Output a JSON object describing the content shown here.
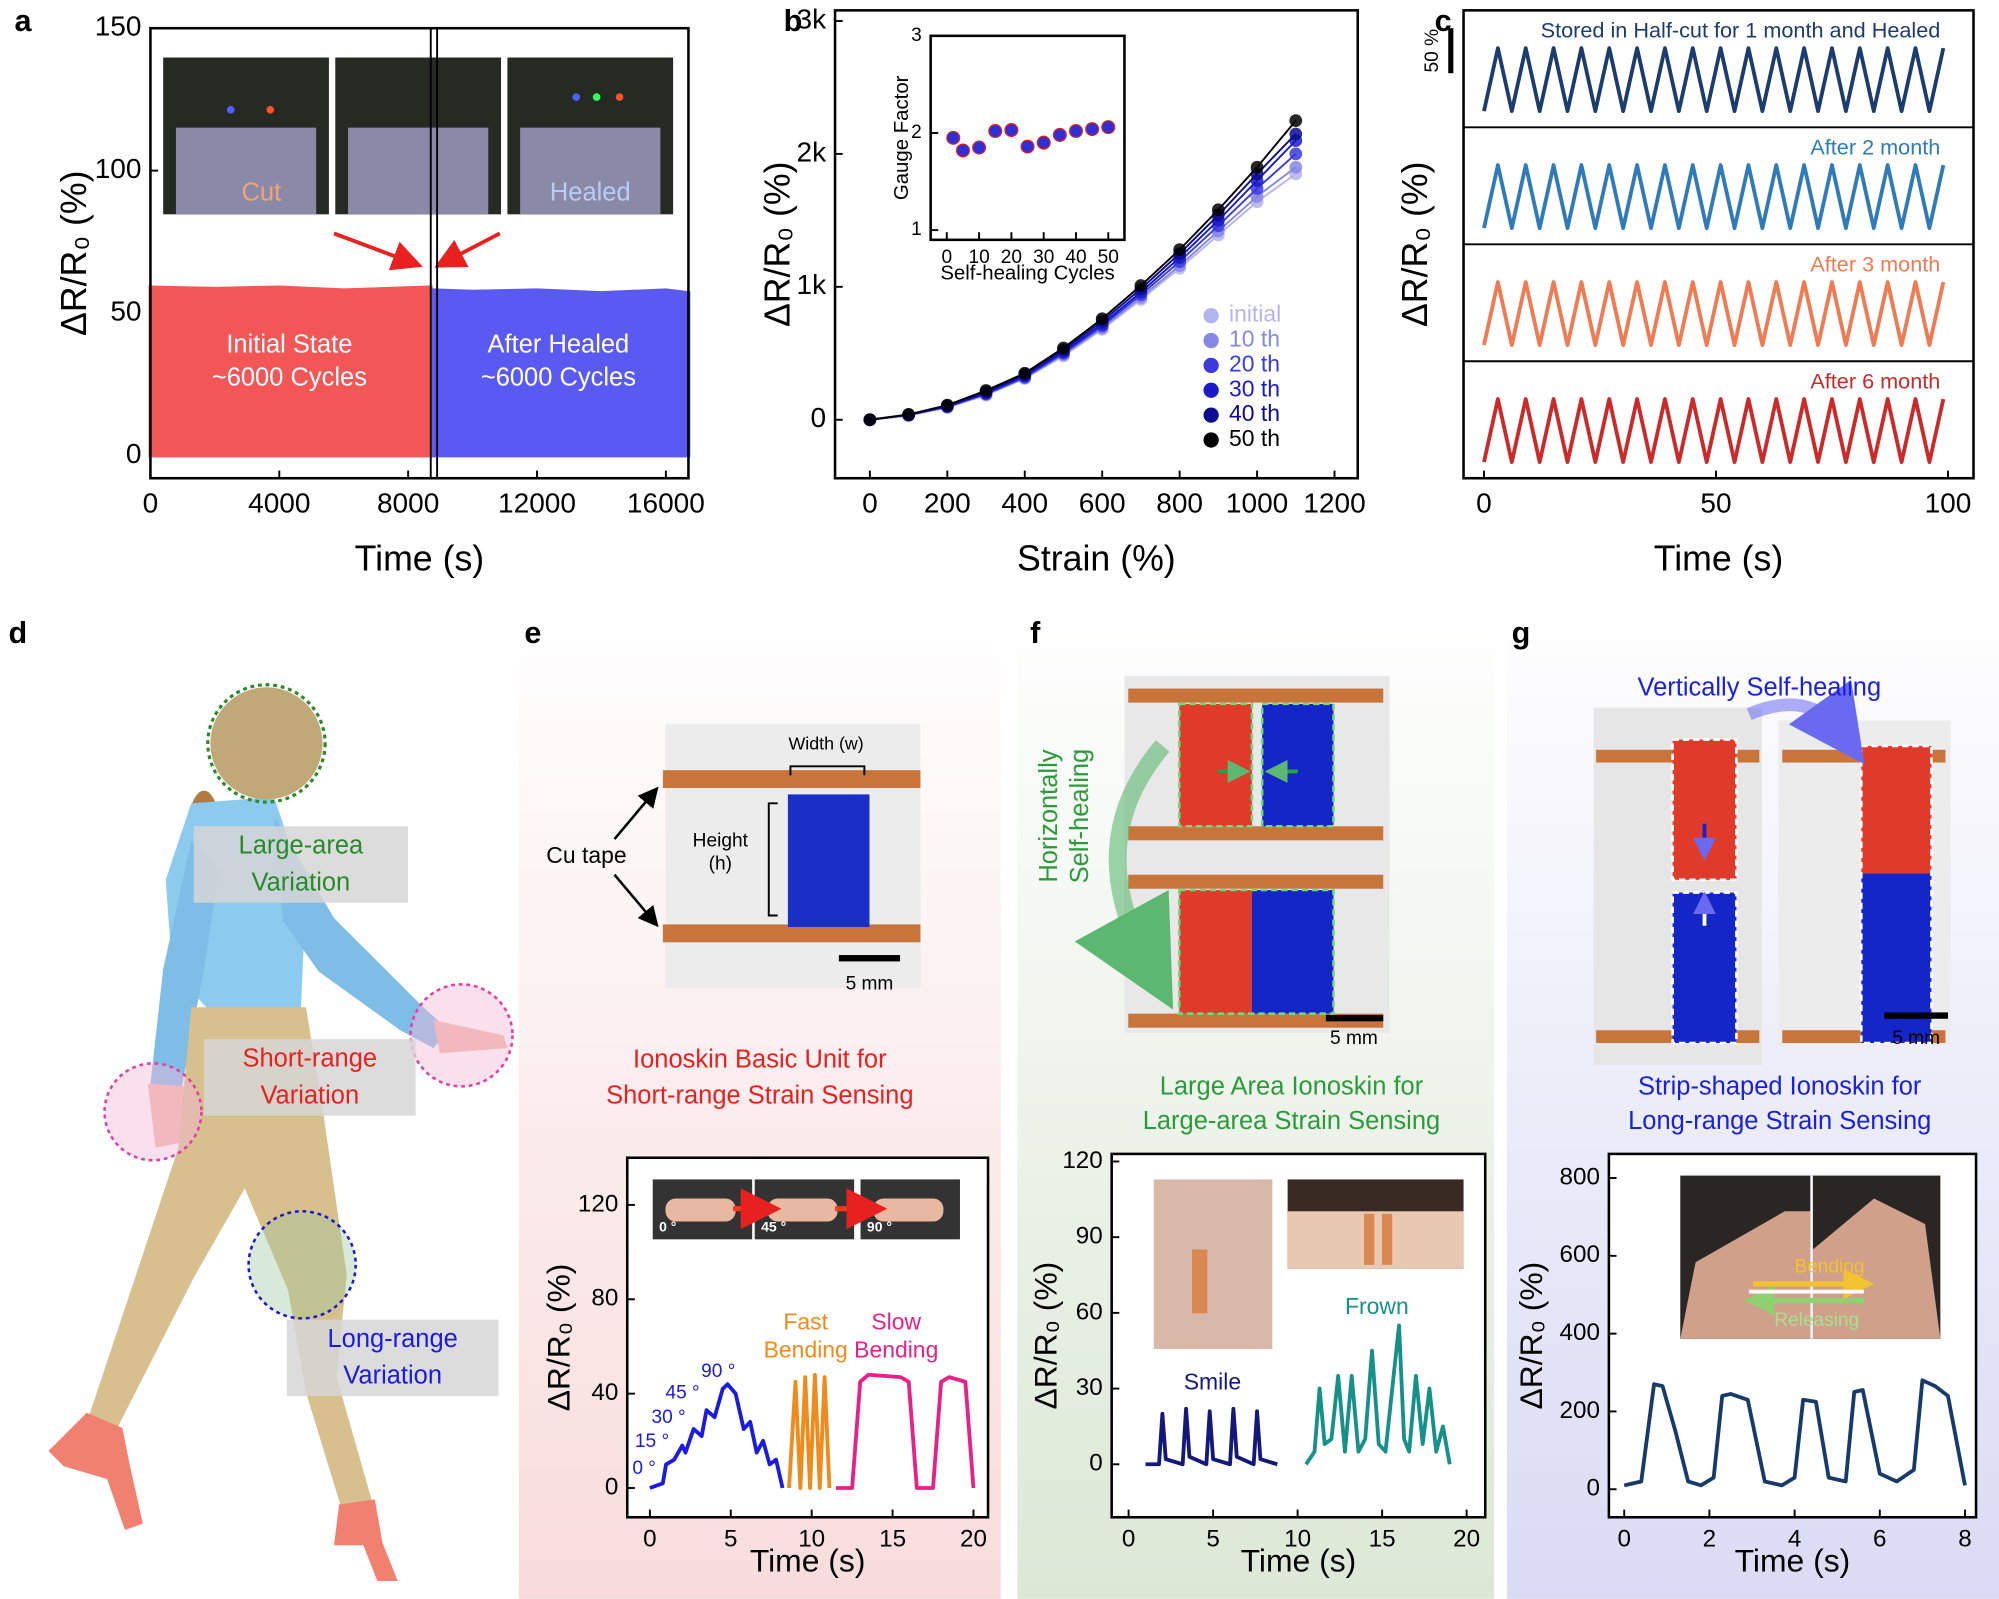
{
  "panel_labels": [
    "a",
    "b",
    "c",
    "d",
    "e",
    "f",
    "g"
  ],
  "chart_data": [
    {
      "type": "area",
      "xlabel": "Time (s)",
      "ylabel": "ΔR/R₀ (%)",
      "xlim": [
        0,
        16700
      ],
      "ylim": [
        -8,
        150
      ],
      "xticks": [
        0,
        4000,
        8000,
        12000,
        16000
      ],
      "yticks": [
        0,
        50,
        100,
        150
      ],
      "series": [
        {
          "color": "#f25656",
          "x": [
            0,
            2000,
            4000,
            6000,
            8700
          ],
          "values": [
            59,
            58.5,
            59,
            58,
            59
          ]
        },
        {
          "color": "#5a5af2",
          "x": [
            8800,
            10000,
            12000,
            14000,
            16000,
            16700
          ],
          "values": [
            58,
            57.5,
            58,
            57,
            58,
            57
          ]
        }
      ],
      "annotations": [
        [
          "Initial State",
          "~6000 Cycles"
        ],
        [
          "After Healed",
          "~6000 Cycles"
        ]
      ],
      "photo_labels": [
        "Cut",
        "Healed"
      ],
      "cut_time": 8800
    },
    {
      "type": "line",
      "markers": true,
      "xlabel": "Strain (%)",
      "ylabel": "ΔR/R₀ (%)",
      "xlim": [
        -90,
        1260
      ],
      "ylim": [
        -440,
        3080
      ],
      "xticks": [
        0,
        200,
        400,
        600,
        800,
        1000,
        1200
      ],
      "yticks": [
        0,
        {
          "value": 1000,
          "label": "1k"
        },
        {
          "value": 2000,
          "label": "2k"
        },
        {
          "value": 3000,
          "label": "3k"
        }
      ],
      "legend": "lower right",
      "x": [
        0,
        100,
        200,
        300,
        400,
        500,
        600,
        700,
        800,
        900,
        1000,
        1100
      ],
      "series": [
        {
          "name": "initial",
          "color": "#b4b4ee",
          "values": [
            0,
            32,
            92,
            185,
            310,
            480,
            680,
            905,
            1140,
            1390,
            1640,
            1850
          ]
        },
        {
          "name": "10 th",
          "color": "#8686e6",
          "values": [
            0,
            33,
            95,
            190,
            315,
            490,
            690,
            920,
            1160,
            1420,
            1680,
            1900
          ]
        },
        {
          "name": "20 th",
          "color": "#3a3ae0",
          "values": [
            0,
            35,
            98,
            195,
            320,
            500,
            705,
            940,
            1190,
            1460,
            1740,
            2000
          ]
        },
        {
          "name": "30 th",
          "color": "#1a1ac8",
          "values": [
            0,
            36,
            100,
            200,
            330,
            510,
            720,
            960,
            1220,
            1500,
            1800,
            2100
          ]
        },
        {
          "name": "40 th",
          "color": "#0c0c90",
          "values": [
            0,
            38,
            105,
            210,
            340,
            525,
            740,
            985,
            1250,
            1540,
            1850,
            2150
          ]
        },
        {
          "name": "50 th",
          "color": "#000000",
          "values": [
            0,
            40,
            110,
            220,
            350,
            540,
            760,
            1010,
            1280,
            1580,
            1900,
            2250
          ]
        }
      ]
    },
    {
      "type": "scatter",
      "xlabel": "Self-healing Cycles",
      "ylabel": "Gauge Factor",
      "xlim": [
        -5,
        55
      ],
      "ylim": [
        0.9,
        3.0
      ],
      "xticks": [
        0,
        10,
        20,
        30,
        40,
        50
      ],
      "yticks": [
        1,
        2,
        3
      ],
      "color": "#2f2fd8",
      "error_color": "#e02020",
      "x": [
        2,
        5,
        10,
        15,
        20,
        25,
        30,
        35,
        40,
        45,
        50
      ],
      "values": [
        1.95,
        1.82,
        1.85,
        2.02,
        2.03,
        1.86,
        1.9,
        1.98,
        2.02,
        2.04,
        2.06
      ],
      "errors": [
        0.06,
        0.02,
        0.02,
        0.02,
        0.02,
        0.02,
        0.05,
        0.07,
        0.05,
        0.02,
        0.02
      ]
    },
    {
      "type": "line",
      "stacked": true,
      "xlabel": "Time (s)",
      "ylabel": "ΔR/R₀ (%)",
      "xlim": [
        -4.4,
        105.5
      ],
      "ylim": [
        -18,
        112
      ],
      "xticks": [
        0,
        50,
        100
      ],
      "scale_bar": {
        "value": 50,
        "label": "50 %"
      },
      "x": [
        0,
        3,
        6,
        9,
        12,
        15,
        18,
        21,
        24,
        27,
        30,
        33,
        36,
        39,
        42,
        45,
        48,
        51,
        54,
        57,
        60,
        63,
        66,
        69,
        72,
        75,
        78,
        81,
        84,
        87,
        90,
        93,
        96,
        99
      ],
      "series": [
        {
          "name": "Stored in Half-cut for 1 month and Healed",
          "color": "#1c3c6e",
          "values": [
            0,
            70,
            0,
            70,
            0,
            70,
            0,
            70,
            0,
            70,
            0,
            70,
            0,
            70,
            0,
            70,
            0,
            70,
            0,
            70,
            0,
            70,
            0,
            70,
            0,
            70,
            0,
            70,
            0,
            70,
            0,
            70,
            0,
            70
          ]
        },
        {
          "name": "After 2 month",
          "color": "#2f7bba",
          "values": [
            0,
            70,
            0,
            70,
            0,
            70,
            0,
            70,
            0,
            70,
            0,
            70,
            0,
            70,
            0,
            70,
            0,
            70,
            0,
            70,
            0,
            70,
            0,
            70,
            0,
            70,
            0,
            70,
            0,
            70,
            0,
            70,
            0,
            70
          ]
        },
        {
          "name": "After 3 month",
          "color": "#f07a52",
          "values": [
            0,
            70,
            0,
            70,
            0,
            70,
            0,
            70,
            0,
            70,
            0,
            70,
            0,
            70,
            0,
            70,
            0,
            70,
            0,
            70,
            0,
            70,
            0,
            70,
            0,
            70,
            0,
            70,
            0,
            70,
            0,
            70,
            0,
            70
          ]
        },
        {
          "name": "After 6 month",
          "color": "#cc2a2a",
          "values": [
            0,
            70,
            0,
            70,
            0,
            70,
            0,
            70,
            0,
            70,
            0,
            70,
            0,
            70,
            0,
            70,
            0,
            70,
            0,
            70,
            0,
            70,
            0,
            70,
            0,
            70,
            0,
            70,
            0,
            70,
            0,
            70,
            0,
            70
          ]
        }
      ]
    },
    {
      "type": "line",
      "xlabel": "Time (s)",
      "ylabel": "ΔR/R₀ (%)",
      "xlim": [
        -1.4,
        20.9
      ],
      "ylim": [
        -12.4,
        140
      ],
      "xticks": [
        0,
        5,
        10,
        15,
        20
      ],
      "yticks": [
        0,
        40,
        80,
        120
      ],
      "photo_labels": [
        "0 °",
        "45 °",
        "90 °"
      ],
      "series": [
        {
          "color": "#1a1ae0",
          "labels": [
            "0 °",
            "15 °",
            "30 °",
            "45 °",
            "90 °"
          ],
          "x": [
            0,
            0.8,
            1,
            1.5,
            2,
            2.2,
            2.7,
            3.2,
            3.5,
            4,
            4.5,
            4.8,
            5.3,
            5.8,
            6.2,
            6.6,
            7,
            7.4,
            7.8,
            8.2
          ],
          "values": [
            0,
            2,
            10,
            12,
            18,
            15,
            25,
            22,
            33,
            30,
            42,
            44,
            40,
            25,
            28,
            15,
            20,
            10,
            12,
            0
          ]
        },
        {
          "color": "#f08a1a",
          "labels": [
            "Fast",
            "Bending"
          ],
          "x": [
            8.6,
            9,
            9.3,
            9.6,
            9.9,
            10.2,
            10.5,
            10.8,
            11.1
          ],
          "values": [
            0,
            45,
            0,
            47,
            0,
            48,
            0,
            47,
            0
          ]
        },
        {
          "color": "#e8208a",
          "labels": [
            "Slow",
            "Bending"
          ],
          "x": [
            11.5,
            12.5,
            13,
            13.5,
            15.5,
            16,
            16.5,
            17.5,
            18,
            18.5,
            19.5,
            20
          ],
          "values": [
            0,
            0,
            45,
            48,
            47,
            45,
            0,
            0,
            45,
            47,
            45,
            0
          ]
        }
      ]
    },
    {
      "type": "line",
      "xlabel": "Time (s)",
      "ylabel": "ΔR/R₀ (%)",
      "xlim": [
        -1,
        21.1
      ],
      "ylim": [
        -21,
        123
      ],
      "xticks": [
        0,
        5,
        10,
        15,
        20
      ],
      "yticks": [
        0,
        30,
        60,
        90,
        120
      ],
      "series": [
        {
          "color": "#14187a",
          "labels": [
            "Smile"
          ],
          "x": [
            1,
            1.8,
            2,
            2.2,
            3.2,
            3.4,
            3.6,
            4.6,
            4.8,
            5,
            6,
            6.2,
            6.4,
            7.4,
            7.6,
            7.8,
            8.8
          ],
          "values": [
            0,
            0,
            20,
            2,
            0,
            22,
            3,
            0,
            21,
            2,
            0,
            22,
            3,
            0,
            21,
            2,
            0
          ]
        },
        {
          "color": "#15918a",
          "labels": [
            "Frown"
          ],
          "x": [
            10.5,
            11,
            11.3,
            11.6,
            12,
            12.4,
            12.8,
            13.2,
            13.6,
            14,
            14.4,
            14.8,
            15.2,
            15.6,
            16,
            16.3,
            16.6,
            17,
            17.4,
            17.8,
            18.2,
            18.6,
            19
          ],
          "values": [
            0,
            5,
            30,
            8,
            10,
            35,
            5,
            35,
            5,
            10,
            45,
            8,
            5,
            30,
            55,
            10,
            5,
            35,
            8,
            30,
            5,
            15,
            0
          ]
        }
      ]
    },
    {
      "type": "line",
      "xlabel": "Time (s)",
      "ylabel": "ΔR/R₀ (%)",
      "xlim": [
        -0.36,
        8.26
      ],
      "ylim": [
        -72,
        862
      ],
      "xticks": [
        0,
        2,
        4,
        6,
        8
      ],
      "yticks": [
        0,
        200,
        400,
        600,
        800
      ],
      "photo_labels": [
        "Bending",
        "Releasing"
      ],
      "series": [
        {
          "color": "#163a6a",
          "x": [
            0,
            0.4,
            0.7,
            0.9,
            1.2,
            1.5,
            1.8,
            2.1,
            2.3,
            2.5,
            2.9,
            3.3,
            3.7,
            4,
            4.2,
            4.5,
            4.8,
            5.2,
            5.4,
            5.6,
            6,
            6.4,
            6.8,
            7,
            7.3,
            7.6,
            8
          ],
          "values": [
            10,
            20,
            270,
            265,
            150,
            20,
            10,
            30,
            240,
            245,
            230,
            20,
            10,
            30,
            230,
            225,
            30,
            20,
            250,
            255,
            40,
            20,
            50,
            280,
            265,
            240,
            10
          ]
        }
      ]
    }
  ],
  "panel_d": {
    "labels": [
      [
        "Large-area",
        "Variation"
      ],
      [
        "Short-range",
        "Variation"
      ],
      [
        "Long-range",
        "Variation"
      ]
    ]
  },
  "panel_e": {
    "width": "Width (w)",
    "height": [
      "Height",
      "(h)"
    ],
    "tape": "Cu tape",
    "scale": "5 mm",
    "caption": [
      "Ionoskin Basic Unit for",
      "Short-range Strain Sensing"
    ]
  },
  "panel_f": {
    "process": [
      "Horizontally",
      "Self-healing"
    ],
    "scale": "5 mm",
    "caption": [
      "Large Area Ionoskin for",
      "Large-area Strain Sensing"
    ]
  },
  "panel_g": {
    "process": "Vertically Self-healing",
    "scale": "5 mm",
    "caption": [
      "Strip-shaped Ionoskin for",
      "Long-range Strain Sensing"
    ]
  }
}
